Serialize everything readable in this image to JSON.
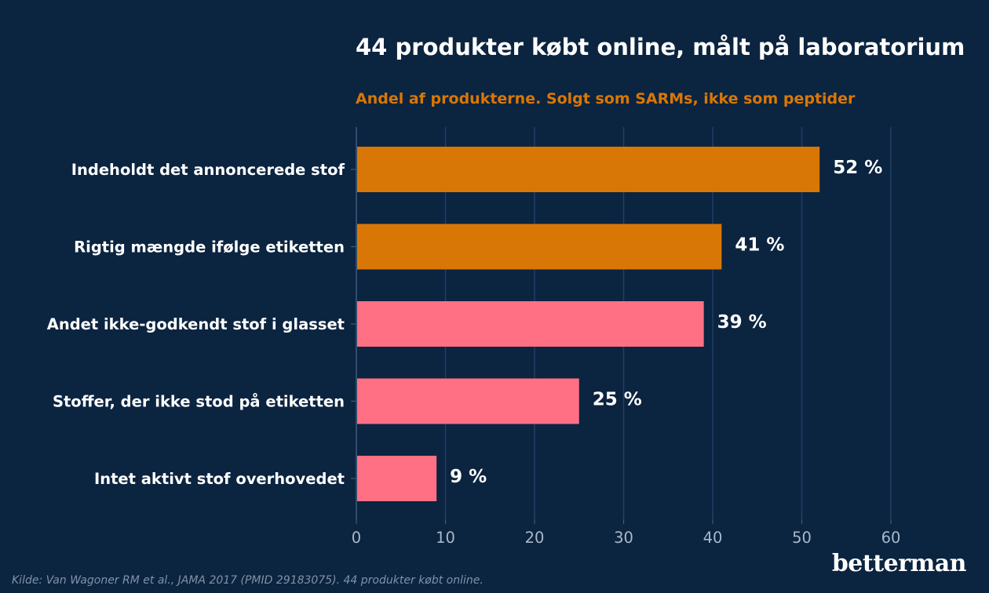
{
  "chart_data": {
    "type": "bar",
    "orientation": "horizontal",
    "title": "44 produkter købt online, målt på laboratorium",
    "subtitle": "Andel af produkterne. Solgt som SARMs, ikke som peptider",
    "categories": [
      "Indeholdt det annoncerede stof",
      "Rigtig mængde ifølge etiketten",
      "Andet ikke-godkendt stof i glasset",
      "Stoffer, der ikke stod på etiketten",
      "Intet aktivt stof overhovedet"
    ],
    "values": [
      52,
      41,
      39,
      25,
      9
    ],
    "value_labels": [
      "52 %",
      "41 %",
      "39 %",
      "25 %",
      "9 %"
    ],
    "bar_colors": [
      "#d97706",
      "#d97706",
      "#ff7085",
      "#ff7085",
      "#ff7085"
    ],
    "xlim": [
      0,
      60
    ],
    "xticks": [
      0,
      10,
      20,
      30,
      40,
      50,
      60
    ],
    "grid": true,
    "xlabel": "",
    "ylabel": ""
  },
  "source": "Kilde: Van Wagoner RM et al., JAMA 2017 (PMID 29183075). 44 produkter købt online.",
  "brand": "betterman",
  "colors": {
    "background": "#0b2440",
    "subtitle": "#d97706",
    "grid": "#1f3f66",
    "axis": "#3d5a7d"
  }
}
